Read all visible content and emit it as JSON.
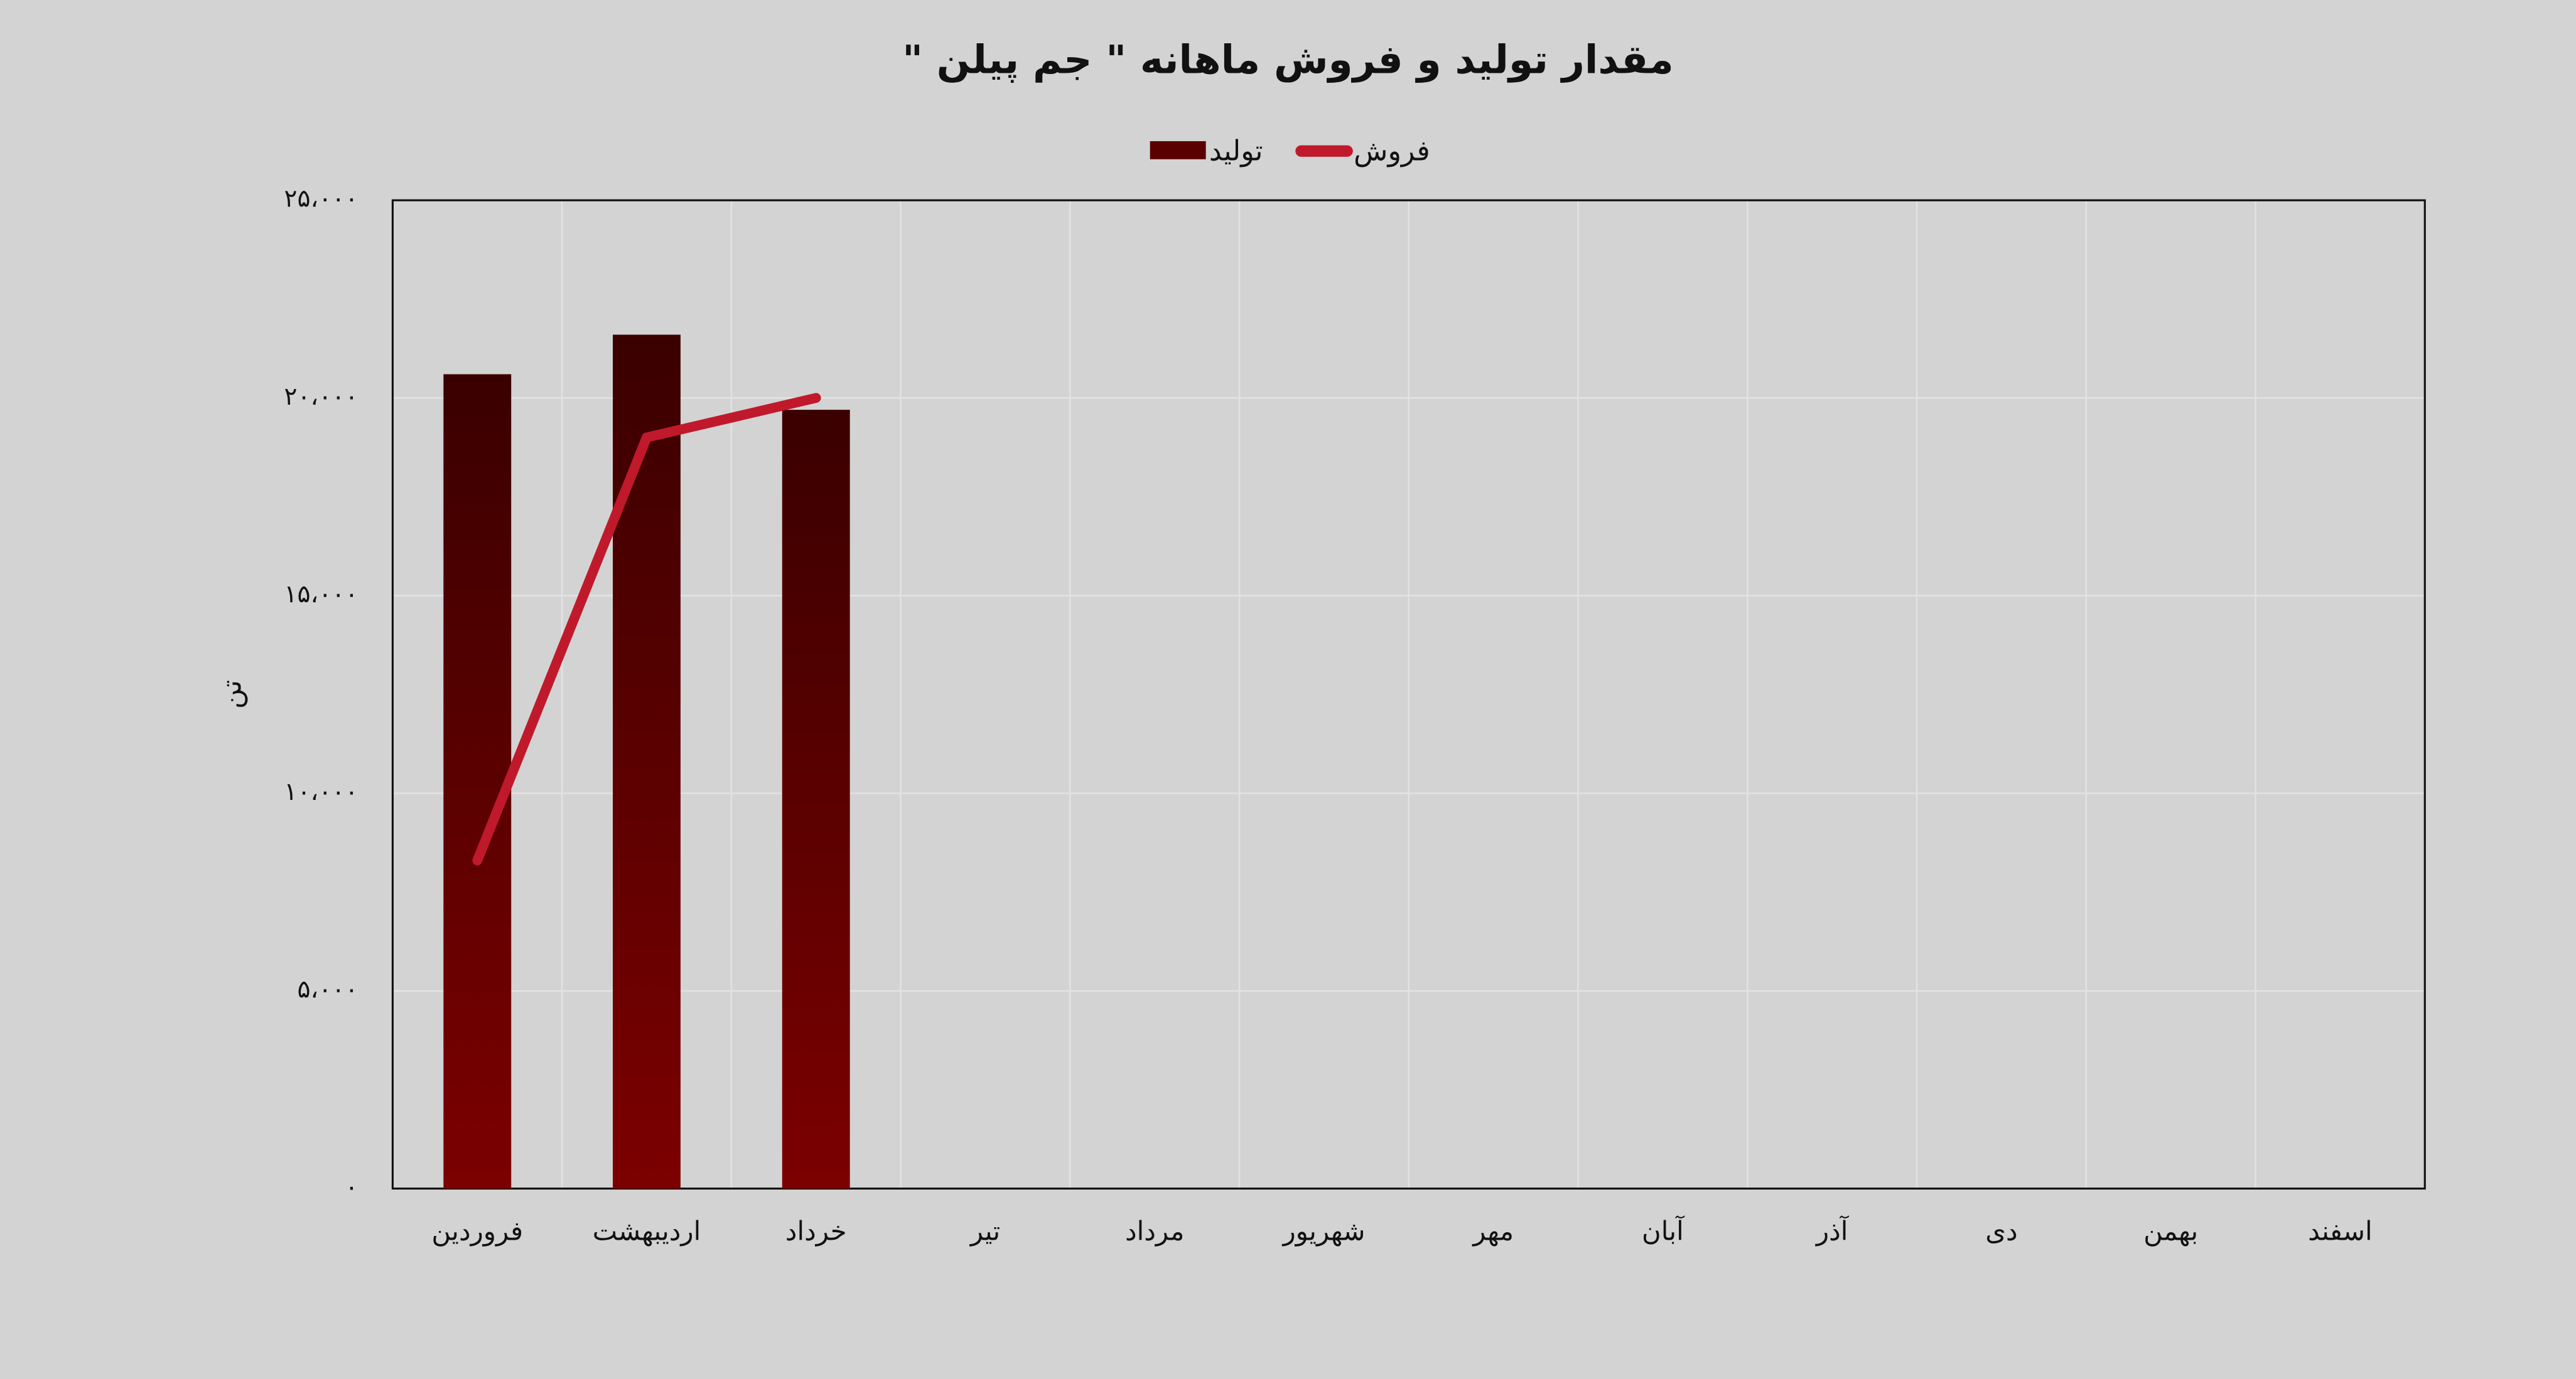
{
  "chart_data": {
    "type": "combo",
    "title": "مقدار تولید و فروش ماهانه \" جم پیلن \"",
    "y_label": "تن",
    "categories": [
      "فروردین",
      "اردیبهشت",
      "خرداد",
      "تیر",
      "مرداد",
      "شهریور",
      "مهر",
      "آبان",
      "آذر",
      "دی",
      "بهمن",
      "اسفند"
    ],
    "series": [
      {
        "name": "تولید",
        "type": "bar",
        "color": "#5a0000",
        "values": [
          20600,
          21600,
          19700,
          null,
          null,
          null,
          null,
          null,
          null,
          null,
          null,
          null
        ]
      },
      {
        "name": "فروش",
        "type": "line",
        "color": "#c0192c",
        "values": [
          8300,
          19000,
          20000,
          null,
          null,
          null,
          null,
          null,
          null,
          null,
          null,
          null
        ]
      }
    ],
    "ylim": [
      0,
      25000
    ],
    "yticks": [
      {
        "value": 0,
        "label": "۰"
      },
      {
        "value": 5000,
        "label": "۵،۰۰۰"
      },
      {
        "value": 10000,
        "label": "۱۰،۰۰۰"
      },
      {
        "value": 15000,
        "label": "۱۵،۰۰۰"
      },
      {
        "value": 20000,
        "label": "۲۰،۰۰۰"
      },
      {
        "value": 25000,
        "label": "۲۵،۰۰۰"
      }
    ],
    "grid": true,
    "legend": "top"
  }
}
